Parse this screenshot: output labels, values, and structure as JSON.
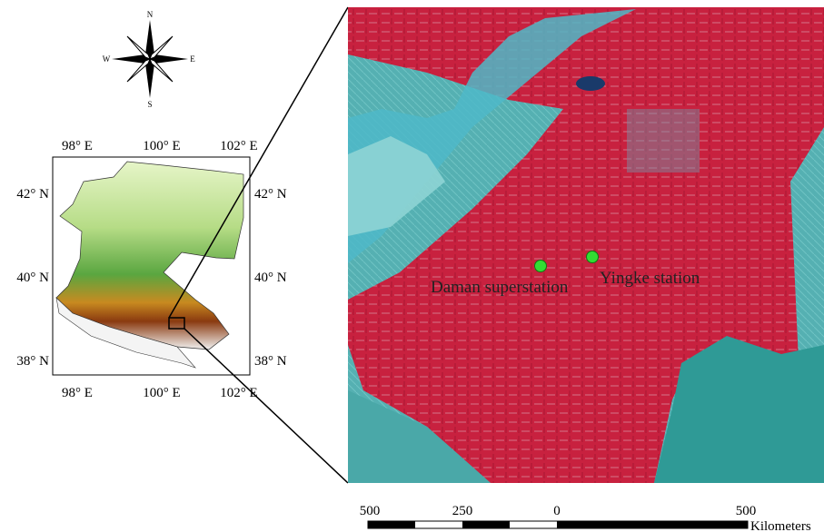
{
  "compass": {
    "north": "N",
    "south": "S",
    "west": "W",
    "east": "E"
  },
  "inset_map": {
    "top_labels": [
      "98° E",
      "100° E",
      "102° E"
    ],
    "bottom_labels": [
      "98° E",
      "100° E",
      "102° E"
    ],
    "left_labels": [
      "42° N",
      "40° N",
      "38° N"
    ],
    "right_labels": [
      "42° N",
      "40° N",
      "38° N"
    ]
  },
  "image": {
    "stations": [
      "Daman superstation",
      "Yingke station"
    ]
  },
  "scale_bar": {
    "labels": [
      500,
      250,
      0,
      500
    ],
    "unit": "Kilometers"
  }
}
